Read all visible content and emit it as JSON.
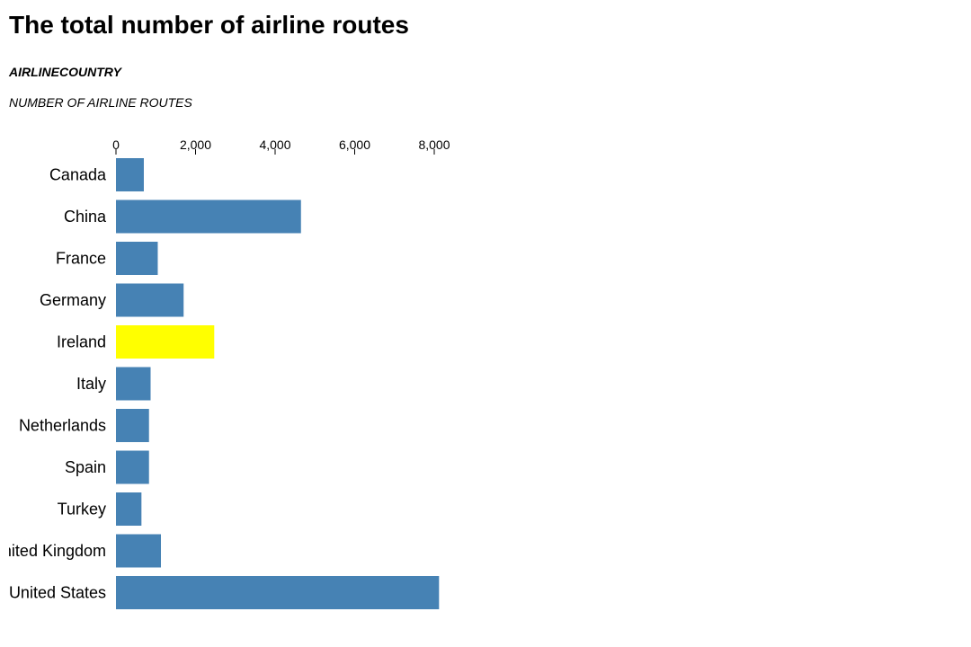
{
  "title": "The total number of airline routes",
  "subtitle": "AIRLINECOUNTRY",
  "axis_description": "NUMBER OF AIRLINE ROUTES",
  "colors": {
    "bar": "#4682b4",
    "highlight": "#ffff00"
  },
  "chart_data": {
    "type": "bar",
    "orientation": "horizontal",
    "categories": [
      "Canada",
      "China",
      "France",
      "Germany",
      "Ireland",
      "Italy",
      "Netherlands",
      "Spain",
      "Turkey",
      "United Kingdom",
      "United States"
    ],
    "values": [
      700,
      4650,
      1050,
      1700,
      2470,
      870,
      830,
      830,
      640,
      1130,
      8120
    ],
    "highlighted": [
      "Ireland"
    ],
    "xlim": [
      0,
      8200
    ],
    "xticks": [
      0,
      2000,
      4000,
      6000,
      8000
    ],
    "xtick_labels": [
      "0",
      "2,000",
      "4,000",
      "6,000",
      "8,000"
    ],
    "x_axis_position": "top",
    "grid": false
  }
}
